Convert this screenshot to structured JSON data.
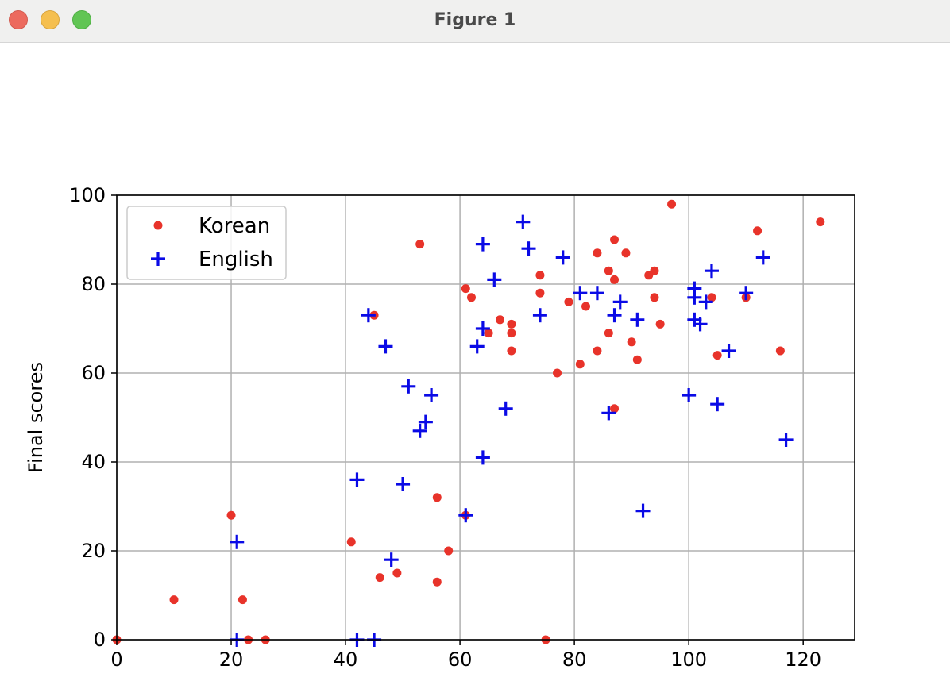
{
  "window": {
    "title": "Figure 1"
  },
  "chart_data": {
    "type": "scatter",
    "title": "",
    "xlabel": "",
    "ylabel": "Final scores",
    "xlim": [
      0,
      129
    ],
    "ylim": [
      0,
      100
    ],
    "xticks": [
      0,
      20,
      40,
      60,
      80,
      100,
      120
    ],
    "yticks": [
      0,
      20,
      40,
      60,
      80,
      100
    ],
    "grid": true,
    "legend_position": "upper-left",
    "series": [
      {
        "name": "Korean",
        "marker": "dot",
        "color": "#e8332a",
        "points": [
          [
            0,
            0
          ],
          [
            10,
            9
          ],
          [
            20,
            28
          ],
          [
            22,
            9
          ],
          [
            23,
            0
          ],
          [
            26,
            0
          ],
          [
            41,
            22
          ],
          [
            45,
            73
          ],
          [
            46,
            14
          ],
          [
            49,
            15
          ],
          [
            53,
            89
          ],
          [
            56,
            32
          ],
          [
            56,
            13
          ],
          [
            58,
            20
          ],
          [
            61,
            79
          ],
          [
            61,
            28
          ],
          [
            62,
            77
          ],
          [
            65,
            69
          ],
          [
            67,
            72
          ],
          [
            69,
            71
          ],
          [
            69,
            69
          ],
          [
            69,
            65
          ],
          [
            74,
            82
          ],
          [
            74,
            78
          ],
          [
            75,
            0
          ],
          [
            77,
            60
          ],
          [
            79,
            76
          ],
          [
            81,
            62
          ],
          [
            82,
            75
          ],
          [
            84,
            87
          ],
          [
            84,
            65
          ],
          [
            86,
            83
          ],
          [
            86,
            69
          ],
          [
            87,
            90
          ],
          [
            87,
            81
          ],
          [
            87,
            52
          ],
          [
            89,
            87
          ],
          [
            90,
            67
          ],
          [
            91,
            63
          ],
          [
            93,
            82
          ],
          [
            94,
            83
          ],
          [
            94,
            77
          ],
          [
            95,
            71
          ],
          [
            97,
            98
          ],
          [
            104,
            77
          ],
          [
            105,
            64
          ],
          [
            110,
            77
          ],
          [
            112,
            92
          ],
          [
            116,
            65
          ],
          [
            123,
            94
          ]
        ]
      },
      {
        "name": "English",
        "marker": "plus",
        "color": "#0a0ae6",
        "points": [
          [
            21,
            0
          ],
          [
            21,
            22
          ],
          [
            42,
            36
          ],
          [
            42,
            0
          ],
          [
            44,
            73
          ],
          [
            45,
            0
          ],
          [
            47,
            66
          ],
          [
            48,
            18
          ],
          [
            50,
            35
          ],
          [
            51,
            57
          ],
          [
            53,
            47
          ],
          [
            54,
            49
          ],
          [
            55,
            55
          ],
          [
            61,
            28
          ],
          [
            63,
            66
          ],
          [
            64,
            89
          ],
          [
            64,
            70
          ],
          [
            64,
            41
          ],
          [
            66,
            81
          ],
          [
            68,
            52
          ],
          [
            71,
            94
          ],
          [
            72,
            88
          ],
          [
            74,
            73
          ],
          [
            78,
            86
          ],
          [
            81,
            78
          ],
          [
            84,
            78
          ],
          [
            86,
            51
          ],
          [
            87,
            73
          ],
          [
            88,
            76
          ],
          [
            91,
            72
          ],
          [
            92,
            29
          ],
          [
            100,
            55
          ],
          [
            101,
            79
          ],
          [
            101,
            77
          ],
          [
            101,
            72
          ],
          [
            102,
            71
          ],
          [
            103,
            76
          ],
          [
            104,
            83
          ],
          [
            105,
            53
          ],
          [
            107,
            65
          ],
          [
            110,
            78
          ],
          [
            113,
            86
          ],
          [
            117,
            45
          ]
        ]
      }
    ]
  }
}
